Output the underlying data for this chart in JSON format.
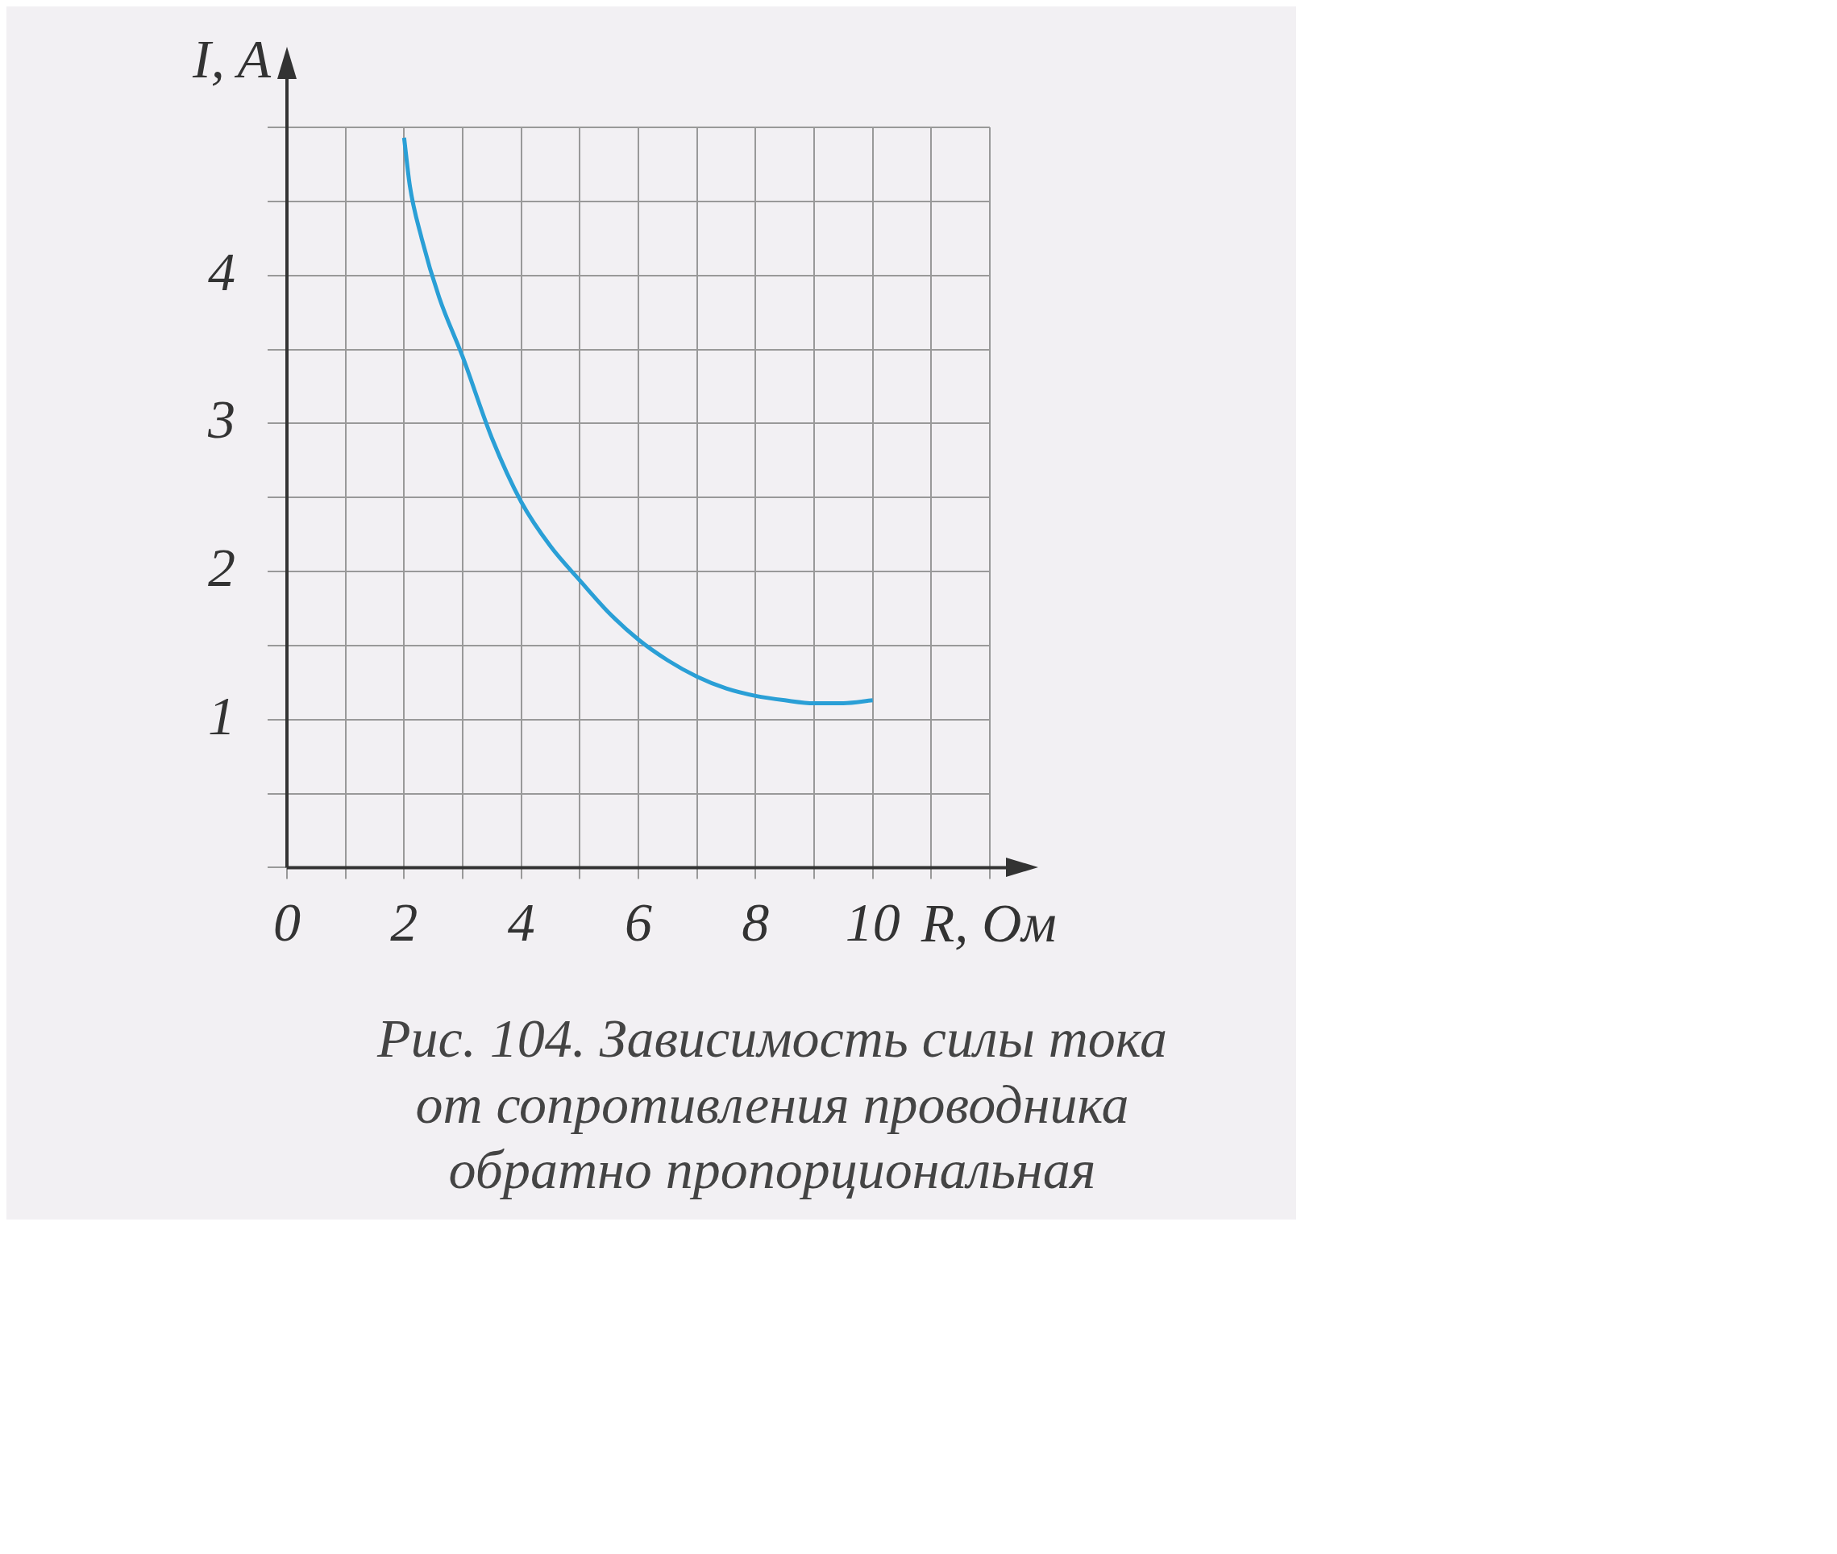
{
  "chart_data": {
    "type": "line",
    "xlabel": "R, Ом",
    "ylabel": "I, A",
    "annotations": [
      "Рис. 104. Зависимость силы тока от сопротивления проводника обратно пропорциональная"
    ],
    "x": [
      2,
      2.1,
      2.3,
      2.6,
      3,
      3.5,
      4,
      4.5,
      5,
      5.5,
      6,
      6.5,
      7,
      7.5,
      8,
      8.5,
      9,
      9.5,
      10
    ],
    "series": [
      {
        "color": "#2a9fd6",
        "values": [
          4.93,
          4.6,
          4.25,
          3.85,
          3.45,
          2.9,
          2.47,
          2.17,
          1.94,
          1.72,
          1.54,
          1.4,
          1.29,
          1.21,
          1.16,
          1.13,
          1.11,
          1.11,
          1.13
        ]
      }
    ],
    "xlim": [
      0,
      12
    ],
    "xticks": [
      {
        "value": 0,
        "label": "0"
      },
      {
        "value": 1,
        "label": null
      },
      2,
      {
        "value": 3,
        "label": null
      },
      4,
      {
        "value": 5,
        "label": null
      },
      6,
      {
        "value": 7,
        "label": null
      },
      8,
      {
        "value": 9,
        "label": null
      },
      10,
      {
        "value": 11,
        "label": null
      },
      {
        "value": 12,
        "label": null
      }
    ],
    "ylim": [
      0,
      5
    ],
    "yticks": [
      {
        "value": 0,
        "label": null
      },
      {
        "value": 0.5,
        "label": null
      },
      1,
      {
        "value": 1.5,
        "label": null
      },
      2,
      {
        "value": 2.5,
        "label": null
      },
      3,
      {
        "value": 3.5,
        "label": null
      },
      4,
      {
        "value": 4.5,
        "label": null
      },
      {
        "value": 5,
        "label": null
      }
    ],
    "grid": true,
    "marker": "none",
    "line_style": "solid"
  }
}
